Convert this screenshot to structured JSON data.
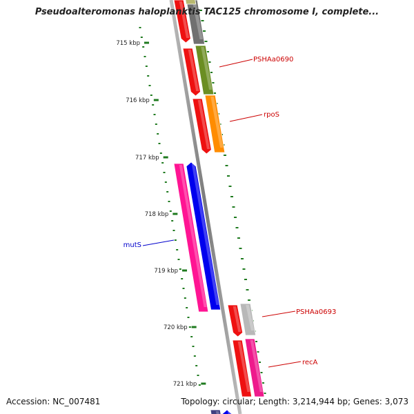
{
  "title": "Pseudoalteromonas haloplanktis TAC125 chromosome I, complete...",
  "footer": {
    "accession": "Accession: NC_007481",
    "summary": "Topology: circular; Length: 3,214,944 bp; Genes: 3,073"
  },
  "colors": {
    "backbone": "#8c8c8c",
    "tick": "#1e7a1e",
    "forward_label": "#cc0000",
    "reverse_label": "#0000cc"
  },
  "kbp_ticks": [
    "715 kbp",
    "716 kbp",
    "717 kbp",
    "718 kbp",
    "719 kbp",
    "720 kbp",
    "721 kbp"
  ],
  "gene_labels": [
    {
      "name": "PSHAa0690",
      "color": "#cc0000"
    },
    {
      "name": "rpoS",
      "color": "#cc0000"
    },
    {
      "name": "mutS",
      "color": "#0000cc"
    },
    {
      "name": "PSHAa0693",
      "color": "#cc0000"
    },
    {
      "name": "recA",
      "color": "#cc0000"
    }
  ],
  "gene_colors": {
    "red": "#ee1111",
    "gray": "#707070",
    "olive": "#b8b870",
    "olive_green": "#6b8e23",
    "orange": "#ff8c00",
    "pink": "#ff1493",
    "blue": "#0000ee",
    "silver": "#b8b8b8",
    "magenta": "#ee1a8c",
    "navy": "#404080"
  }
}
